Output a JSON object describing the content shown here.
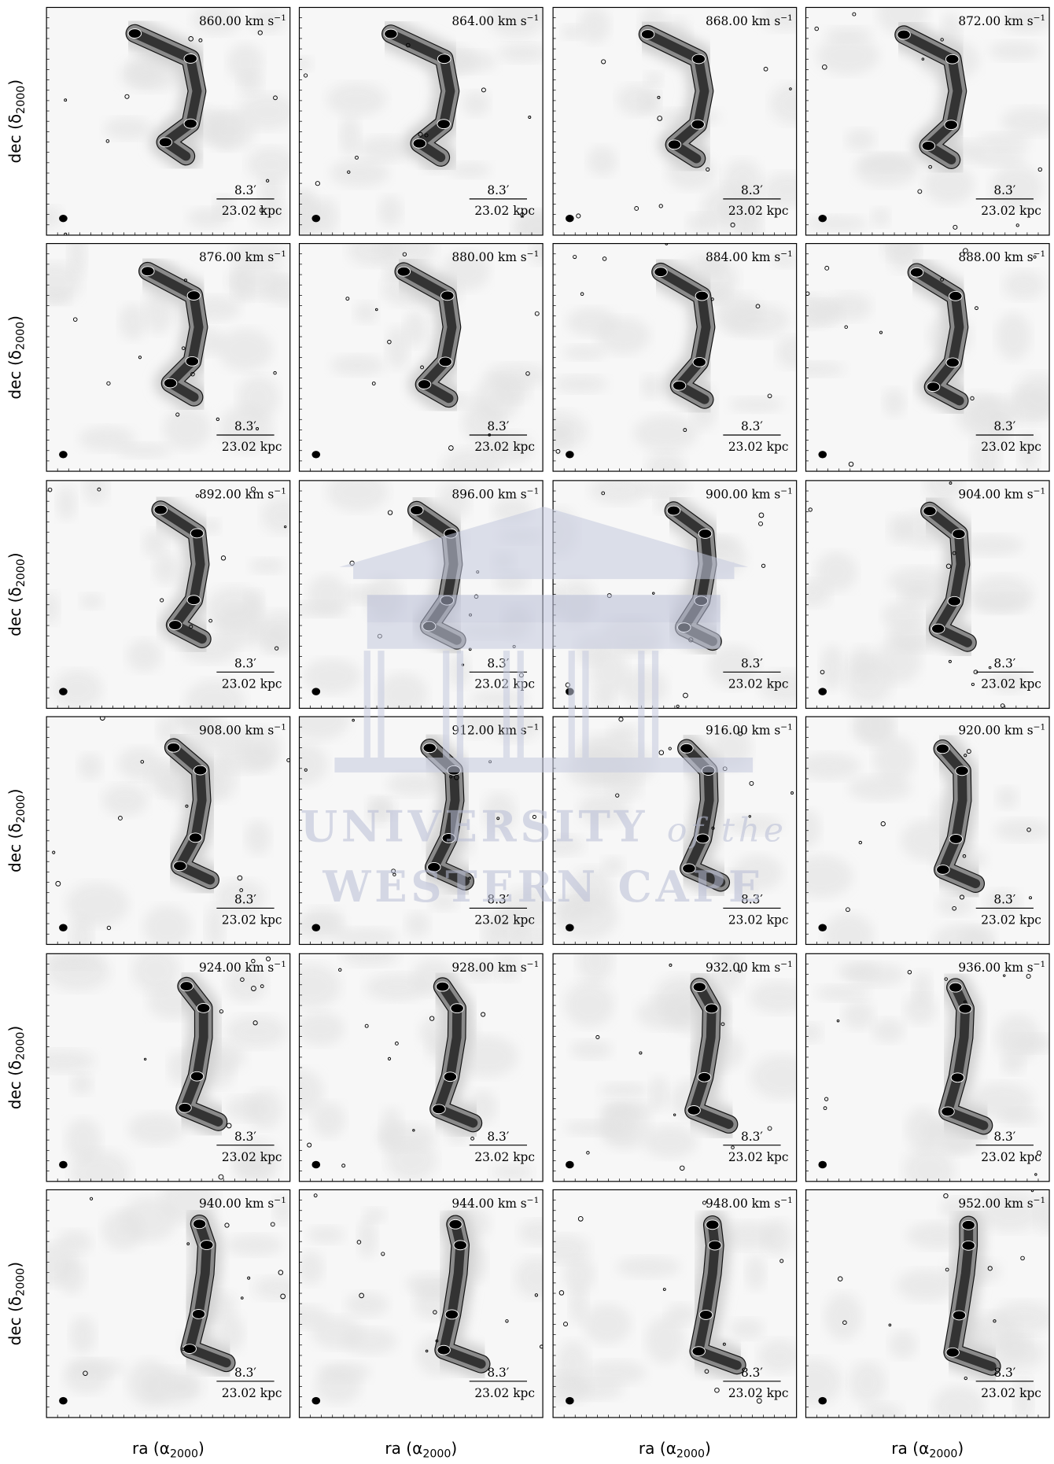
{
  "panels": [
    {
      "velocity": "860.00 km s"
    },
    {
      "velocity": "864.00 km s"
    },
    {
      "velocity": "868.00 km s"
    },
    {
      "velocity": "872.00 km s"
    },
    {
      "velocity": "876.00 km s"
    },
    {
      "velocity": "880.00 km s"
    },
    {
      "velocity": "884.00 km s"
    },
    {
      "velocity": "888.00 km s"
    },
    {
      "velocity": "892.00 km s"
    },
    {
      "velocity": "896.00 km s"
    },
    {
      "velocity": "900.00 km s"
    },
    {
      "velocity": "904.00 km s"
    },
    {
      "velocity": "908.00 km s"
    },
    {
      "velocity": "912.00 km s"
    },
    {
      "velocity": "916.00 km s"
    },
    {
      "velocity": "920.00 km s"
    },
    {
      "velocity": "924.00 km s"
    },
    {
      "velocity": "928.00 km s"
    },
    {
      "velocity": "932.00 km s"
    },
    {
      "velocity": "936.00 km s"
    },
    {
      "velocity": "940.00 km s"
    },
    {
      "velocity": "944.00 km s"
    },
    {
      "velocity": "948.00 km s"
    },
    {
      "velocity": "952.00 km s"
    }
  ],
  "velocity_unit_exponent": "−1",
  "scale_bar": {
    "angle": "8.3′",
    "length": "23.02 kpc"
  },
  "y_axis_label": {
    "text": "dec (δ",
    "subscript": "2000",
    "close": ")"
  },
  "x_axis_label": {
    "text": "ra (α",
    "subscript": "2000",
    "close": ")"
  },
  "watermark": {
    "line1": "UNIVERSITY",
    "line1_italic": "of the",
    "line2": "WESTERN CAPE"
  }
}
